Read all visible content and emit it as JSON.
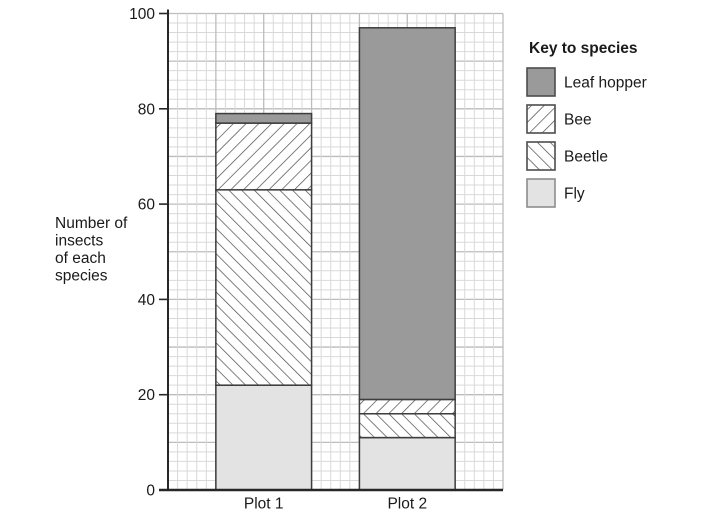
{
  "chart_data": {
    "type": "bar",
    "stacked": true,
    "title": "",
    "xlabel": "",
    "categories": [
      "Plot 1",
      "Plot 2"
    ],
    "series": [
      {
        "name": "Fly",
        "values": [
          22,
          11
        ],
        "pattern": "solid",
        "color": "#e3e3e3",
        "swatch_border": "#8c8c8c"
      },
      {
        "name": "Beetle",
        "values": [
          41,
          5
        ],
        "pattern": "hatch-backslash",
        "color": "#ffffff",
        "swatch_border": "#4d4d4d"
      },
      {
        "name": "Bee",
        "values": [
          14,
          3
        ],
        "pattern": "hatch-slash",
        "color": "#ffffff",
        "swatch_border": "#4d4d4d"
      },
      {
        "name": "Leaf hopper",
        "values": [
          2,
          78
        ],
        "pattern": "solid",
        "color": "#9a9a9a",
        "swatch_border": "#4d4d4d"
      }
    ],
    "stack_totals": [
      79,
      97
    ],
    "ylabel_lines": [
      "Number of",
      "insects",
      "of each",
      "species"
    ],
    "ylim": [
      0,
      100
    ],
    "yticks": [
      0,
      20,
      40,
      60,
      80,
      100
    ],
    "grid": {
      "visible": true,
      "minor_step": 2,
      "major_step": 10,
      "minor_color": "#d9d9d9",
      "major_color": "#bcbcbc"
    },
    "legend": {
      "title": "Key to species",
      "position": "right",
      "entries": [
        "Leaf hopper",
        "Bee",
        "Beetle",
        "Fly"
      ]
    }
  },
  "style": {
    "background": "#ffffff",
    "axis_color": "#272727",
    "bar_border_color": "#3d3d3d",
    "hatch_color": "#4a4a4a",
    "text_color": "#1a1a1a"
  }
}
